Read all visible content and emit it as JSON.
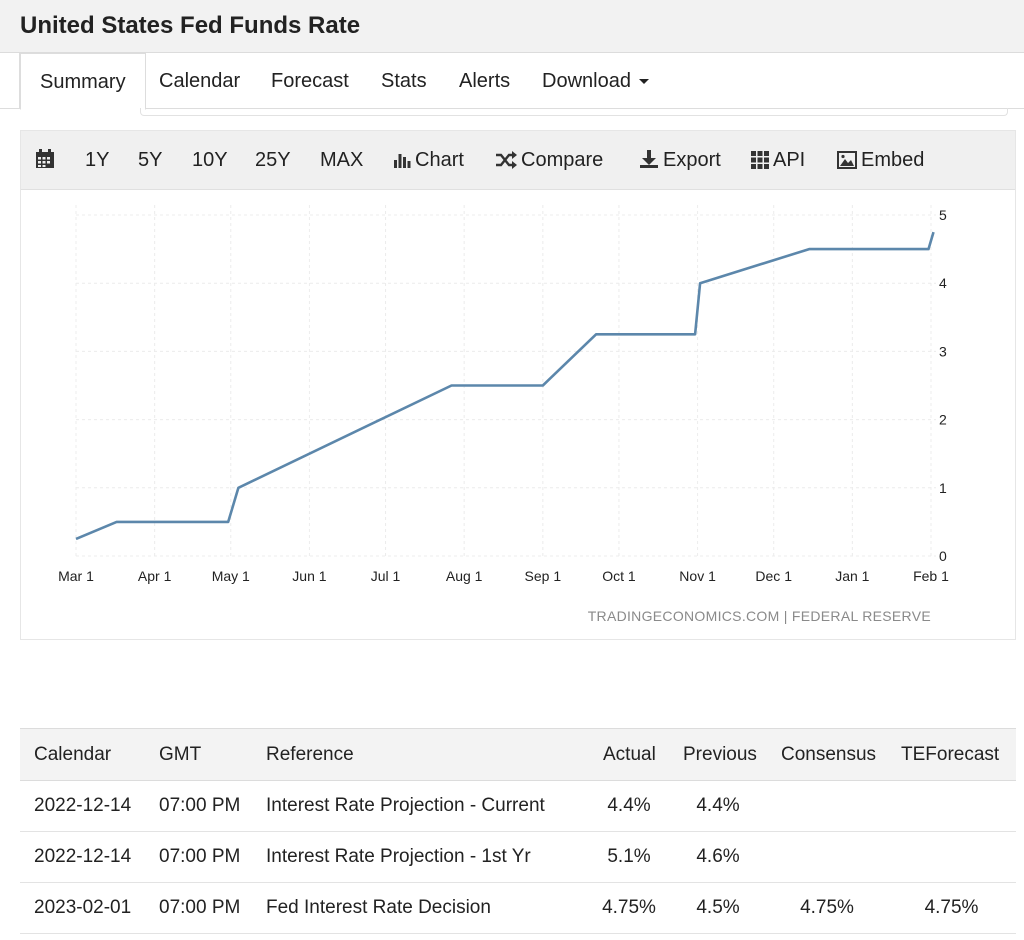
{
  "page": {
    "title": "United States Fed Funds Rate"
  },
  "tabs": [
    {
      "label": "Summary",
      "active": true
    },
    {
      "label": "Calendar"
    },
    {
      "label": "Forecast"
    },
    {
      "label": "Stats"
    },
    {
      "label": "Alerts"
    },
    {
      "label": "Download"
    }
  ],
  "toolbar": {
    "ranges": [
      "1Y",
      "5Y",
      "10Y",
      "25Y",
      "MAX"
    ],
    "chart_label": "Chart",
    "compare_label": "Compare",
    "export_label": "Export",
    "api_label": "API",
    "embed_label": "Embed",
    "icons": [
      "calendar-icon",
      "bar-chart-icon",
      "shuffle-icon",
      "download-icon",
      "grid-icon",
      "image-icon"
    ]
  },
  "chart_data": {
    "type": "line",
    "title": "",
    "xlabel": "",
    "ylabel": "",
    "x_ticks": [
      "Mar 1",
      "Apr 1",
      "May 1",
      "Jun 1",
      "Jul 1",
      "Aug 1",
      "Sep 1",
      "Oct 1",
      "Nov 1",
      "Dec 1",
      "Jan 1",
      "Feb 1"
    ],
    "y_ticks": [
      0,
      1,
      2,
      3,
      4,
      5
    ],
    "ylim": [
      0,
      5
    ],
    "xlim": [
      "2022-03-01",
      "2023-02-01"
    ],
    "grid": true,
    "y_axis_position": "right",
    "line_color": "#5c87ab",
    "source": "TRADINGECONOMICS.COM | FEDERAL RESERVE",
    "series": [
      {
        "values": [
          {
            "x": "2022-03-01",
            "y": 0.25
          },
          {
            "x": "2022-03-17",
            "y": 0.5
          },
          {
            "x": "2022-04-30",
            "y": 0.5
          },
          {
            "x": "2022-05-04",
            "y": 1.0
          },
          {
            "x": "2022-07-27",
            "y": 2.5
          },
          {
            "x": "2022-09-01",
            "y": 2.5
          },
          {
            "x": "2022-09-22",
            "y": 3.25
          },
          {
            "x": "2022-10-31",
            "y": 3.25
          },
          {
            "x": "2022-11-02",
            "y": 4.0
          },
          {
            "x": "2022-12-15",
            "y": 4.5
          },
          {
            "x": "2023-01-31",
            "y": 4.5
          },
          {
            "x": "2023-02-02",
            "y": 4.75
          }
        ]
      }
    ]
  },
  "table": {
    "headers": [
      "Calendar",
      "GMT",
      "Reference",
      "Actual",
      "Previous",
      "Consensus",
      "TEForecast"
    ],
    "rows": [
      [
        "2022-12-14",
        "07:00 PM",
        "Interest Rate Projection - Current",
        "4.4%",
        "4.4%",
        "",
        ""
      ],
      [
        "2022-12-14",
        "07:00 PM",
        "Interest Rate Projection - 1st Yr",
        "5.1%",
        "4.6%",
        "",
        ""
      ],
      [
        "2023-02-01",
        "07:00 PM",
        "Fed Interest Rate Decision",
        "4.75%",
        "4.5%",
        "4.75%",
        "4.75%"
      ]
    ]
  }
}
